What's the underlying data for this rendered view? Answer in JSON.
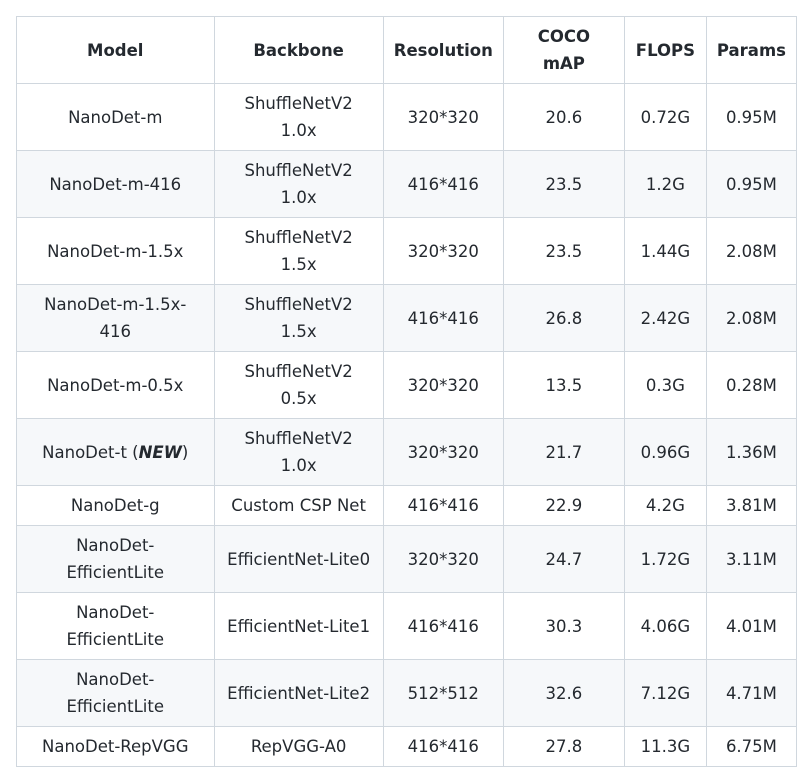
{
  "table": {
    "headers": [
      "Model",
      "Backbone",
      "Resolution",
      "COCO\nmAP",
      "FLOPS",
      "Params"
    ],
    "header_lines": [
      [
        "Model"
      ],
      [
        "Backbone"
      ],
      [
        "Resolution"
      ],
      [
        "COCO",
        "mAP"
      ],
      [
        "FLOPS"
      ],
      [
        "Params"
      ]
    ],
    "rows": [
      {
        "model": [
          "NanoDet-m"
        ],
        "backbone": [
          "ShuffleNetV2",
          "1.0x"
        ],
        "resolution": "320*320",
        "map": "20.6",
        "flops": "0.72G",
        "params": "0.95M"
      },
      {
        "model": [
          "NanoDet-m-416"
        ],
        "backbone": [
          "ShuffleNetV2",
          "1.0x"
        ],
        "resolution": "416*416",
        "map": "23.5",
        "flops": "1.2G",
        "params": "0.95M"
      },
      {
        "model": [
          "NanoDet-m-1.5x"
        ],
        "backbone": [
          "ShuffleNetV2",
          "1.5x"
        ],
        "resolution": "320*320",
        "map": "23.5",
        "flops": "1.44G",
        "params": "2.08M"
      },
      {
        "model": [
          "NanoDet-m-1.5x-",
          "416"
        ],
        "backbone": [
          "ShuffleNetV2",
          "1.5x"
        ],
        "resolution": "416*416",
        "map": "26.8",
        "flops": "2.42G",
        "params": "2.08M"
      },
      {
        "model": [
          "NanoDet-m-0.5x"
        ],
        "backbone": [
          "ShuffleNetV2",
          "0.5x"
        ],
        "resolution": "320*320",
        "map": "13.5",
        "flops": "0.3G",
        "params": "0.28M"
      },
      {
        "model": [
          "NanoDet-t ("
        ],
        "model_em": "NEW",
        "model_suffix": ")",
        "backbone": [
          "ShuffleNetV2",
          "1.0x"
        ],
        "resolution": "320*320",
        "map": "21.7",
        "flops": "0.96G",
        "params": "1.36M"
      },
      {
        "model": [
          "NanoDet-g"
        ],
        "backbone": [
          "Custom CSP Net"
        ],
        "resolution": "416*416",
        "map": "22.9",
        "flops": "4.2G",
        "params": "3.81M"
      },
      {
        "model": [
          "NanoDet-",
          "EfficientLite"
        ],
        "backbone": [
          "EfficientNet-Lite0"
        ],
        "resolution": "320*320",
        "map": "24.7",
        "flops": "1.72G",
        "params": "3.11M"
      },
      {
        "model": [
          "NanoDet-",
          "EfficientLite"
        ],
        "backbone": [
          "EfficientNet-Lite1"
        ],
        "resolution": "416*416",
        "map": "30.3",
        "flops": "4.06G",
        "params": "4.01M"
      },
      {
        "model": [
          "NanoDet-",
          "EfficientLite"
        ],
        "backbone": [
          "EfficientNet-Lite2"
        ],
        "resolution": "512*512",
        "map": "32.6",
        "flops": "7.12G",
        "params": "4.71M"
      },
      {
        "model": [
          "NanoDet-RepVGG"
        ],
        "backbone": [
          "RepVGG-A0"
        ],
        "resolution": "416*416",
        "map": "27.8",
        "flops": "11.3G",
        "params": "6.75M"
      }
    ]
  }
}
